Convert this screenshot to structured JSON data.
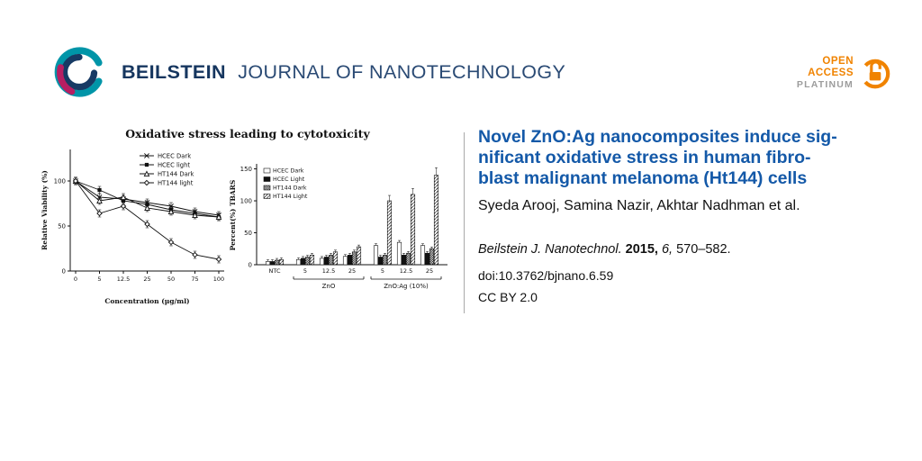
{
  "header": {
    "brand_bold": "BEILSTEIN",
    "brand_rest": "JOURNAL OF NANOTECHNOLOGY",
    "brand_color": "#16365f",
    "open_access": {
      "line1": "OPEN",
      "line2": "ACCESS",
      "line3": "PLATINUM",
      "accent_color": "#f08300",
      "gray_color": "#9c9c9c"
    }
  },
  "figure": {
    "title": "Oxidative stress leading to cytotoxicity"
  },
  "chart_data": [
    {
      "type": "line",
      "ylabel": "Relative Viability (%)",
      "xlabel": "Concentration (µg/ml)",
      "x": [
        0,
        5,
        12.5,
        25,
        50,
        75,
        100
      ],
      "xtick_labels": [
        "0",
        "5",
        "12.5",
        "25",
        "50",
        "75",
        "100"
      ],
      "ylim": [
        0,
        135
      ],
      "yticks": [
        0,
        50,
        100
      ],
      "legend_position": "top-right-inside",
      "grid": false,
      "series": [
        {
          "name": "HCEC Dark",
          "marker": "x",
          "values": [
            100,
            82,
            80,
            76,
            72,
            66,
            62
          ]
        },
        {
          "name": "HCEC light",
          "marker": "square",
          "values": [
            100,
            90,
            78,
            74,
            68,
            64,
            60
          ]
        },
        {
          "name": "HT144 Dark",
          "marker": "triangle",
          "values": [
            100,
            78,
            82,
            70,
            66,
            62,
            60
          ]
        },
        {
          "name": "HT144 light",
          "marker": "diamond",
          "values": [
            100,
            64,
            72,
            52,
            32,
            18,
            13
          ]
        }
      ]
    },
    {
      "type": "bar",
      "ylabel": "Percent(%) TBARS",
      "ylim": [
        0,
        155
      ],
      "yticks": [
        0,
        50,
        100,
        150
      ],
      "categories": [
        "NTC",
        "5",
        "12.5",
        "25",
        "5",
        "12.5",
        "25"
      ],
      "group_labels": [
        {
          "label": "ZnO",
          "from": 1,
          "to": 3
        },
        {
          "label": "ZnO:Ag (10%)",
          "from": 4,
          "to": 6
        }
      ],
      "legend_position": "top-left-inside",
      "grid": false,
      "series": [
        {
          "name": "HCEC Dark",
          "fill": "open",
          "values": [
            5,
            8,
            10,
            13,
            30,
            35,
            30
          ]
        },
        {
          "name": "HCEC Light",
          "fill": "solid",
          "values": [
            5,
            10,
            12,
            15,
            12,
            15,
            18
          ]
        },
        {
          "name": "HT144  Dark",
          "fill": "checker",
          "values": [
            7,
            12,
            15,
            20,
            15,
            18,
            25
          ]
        },
        {
          "name": "HT144  Light",
          "fill": "hatch",
          "values": [
            8,
            15,
            20,
            28,
            100,
            110,
            140
          ]
        }
      ]
    }
  ],
  "article": {
    "title_lines": [
      "Novel ZnO:Ag nanocomposites induce sig-",
      "nificant oxidative stress in human fibro-",
      "blast malignant melanoma (Ht144) cells"
    ],
    "title_color": "#1459a8",
    "authors": "Syeda Arooj, Samina Nazir, Akhtar Nadhman et al.",
    "citation": {
      "journal": "Beilstein J. Nanotechnol.",
      "year": "2015,",
      "volume": "6,",
      "pages": "570–582."
    },
    "doi": "doi:10.3762/bjnano.6.59",
    "license": "CC BY 2.0"
  }
}
